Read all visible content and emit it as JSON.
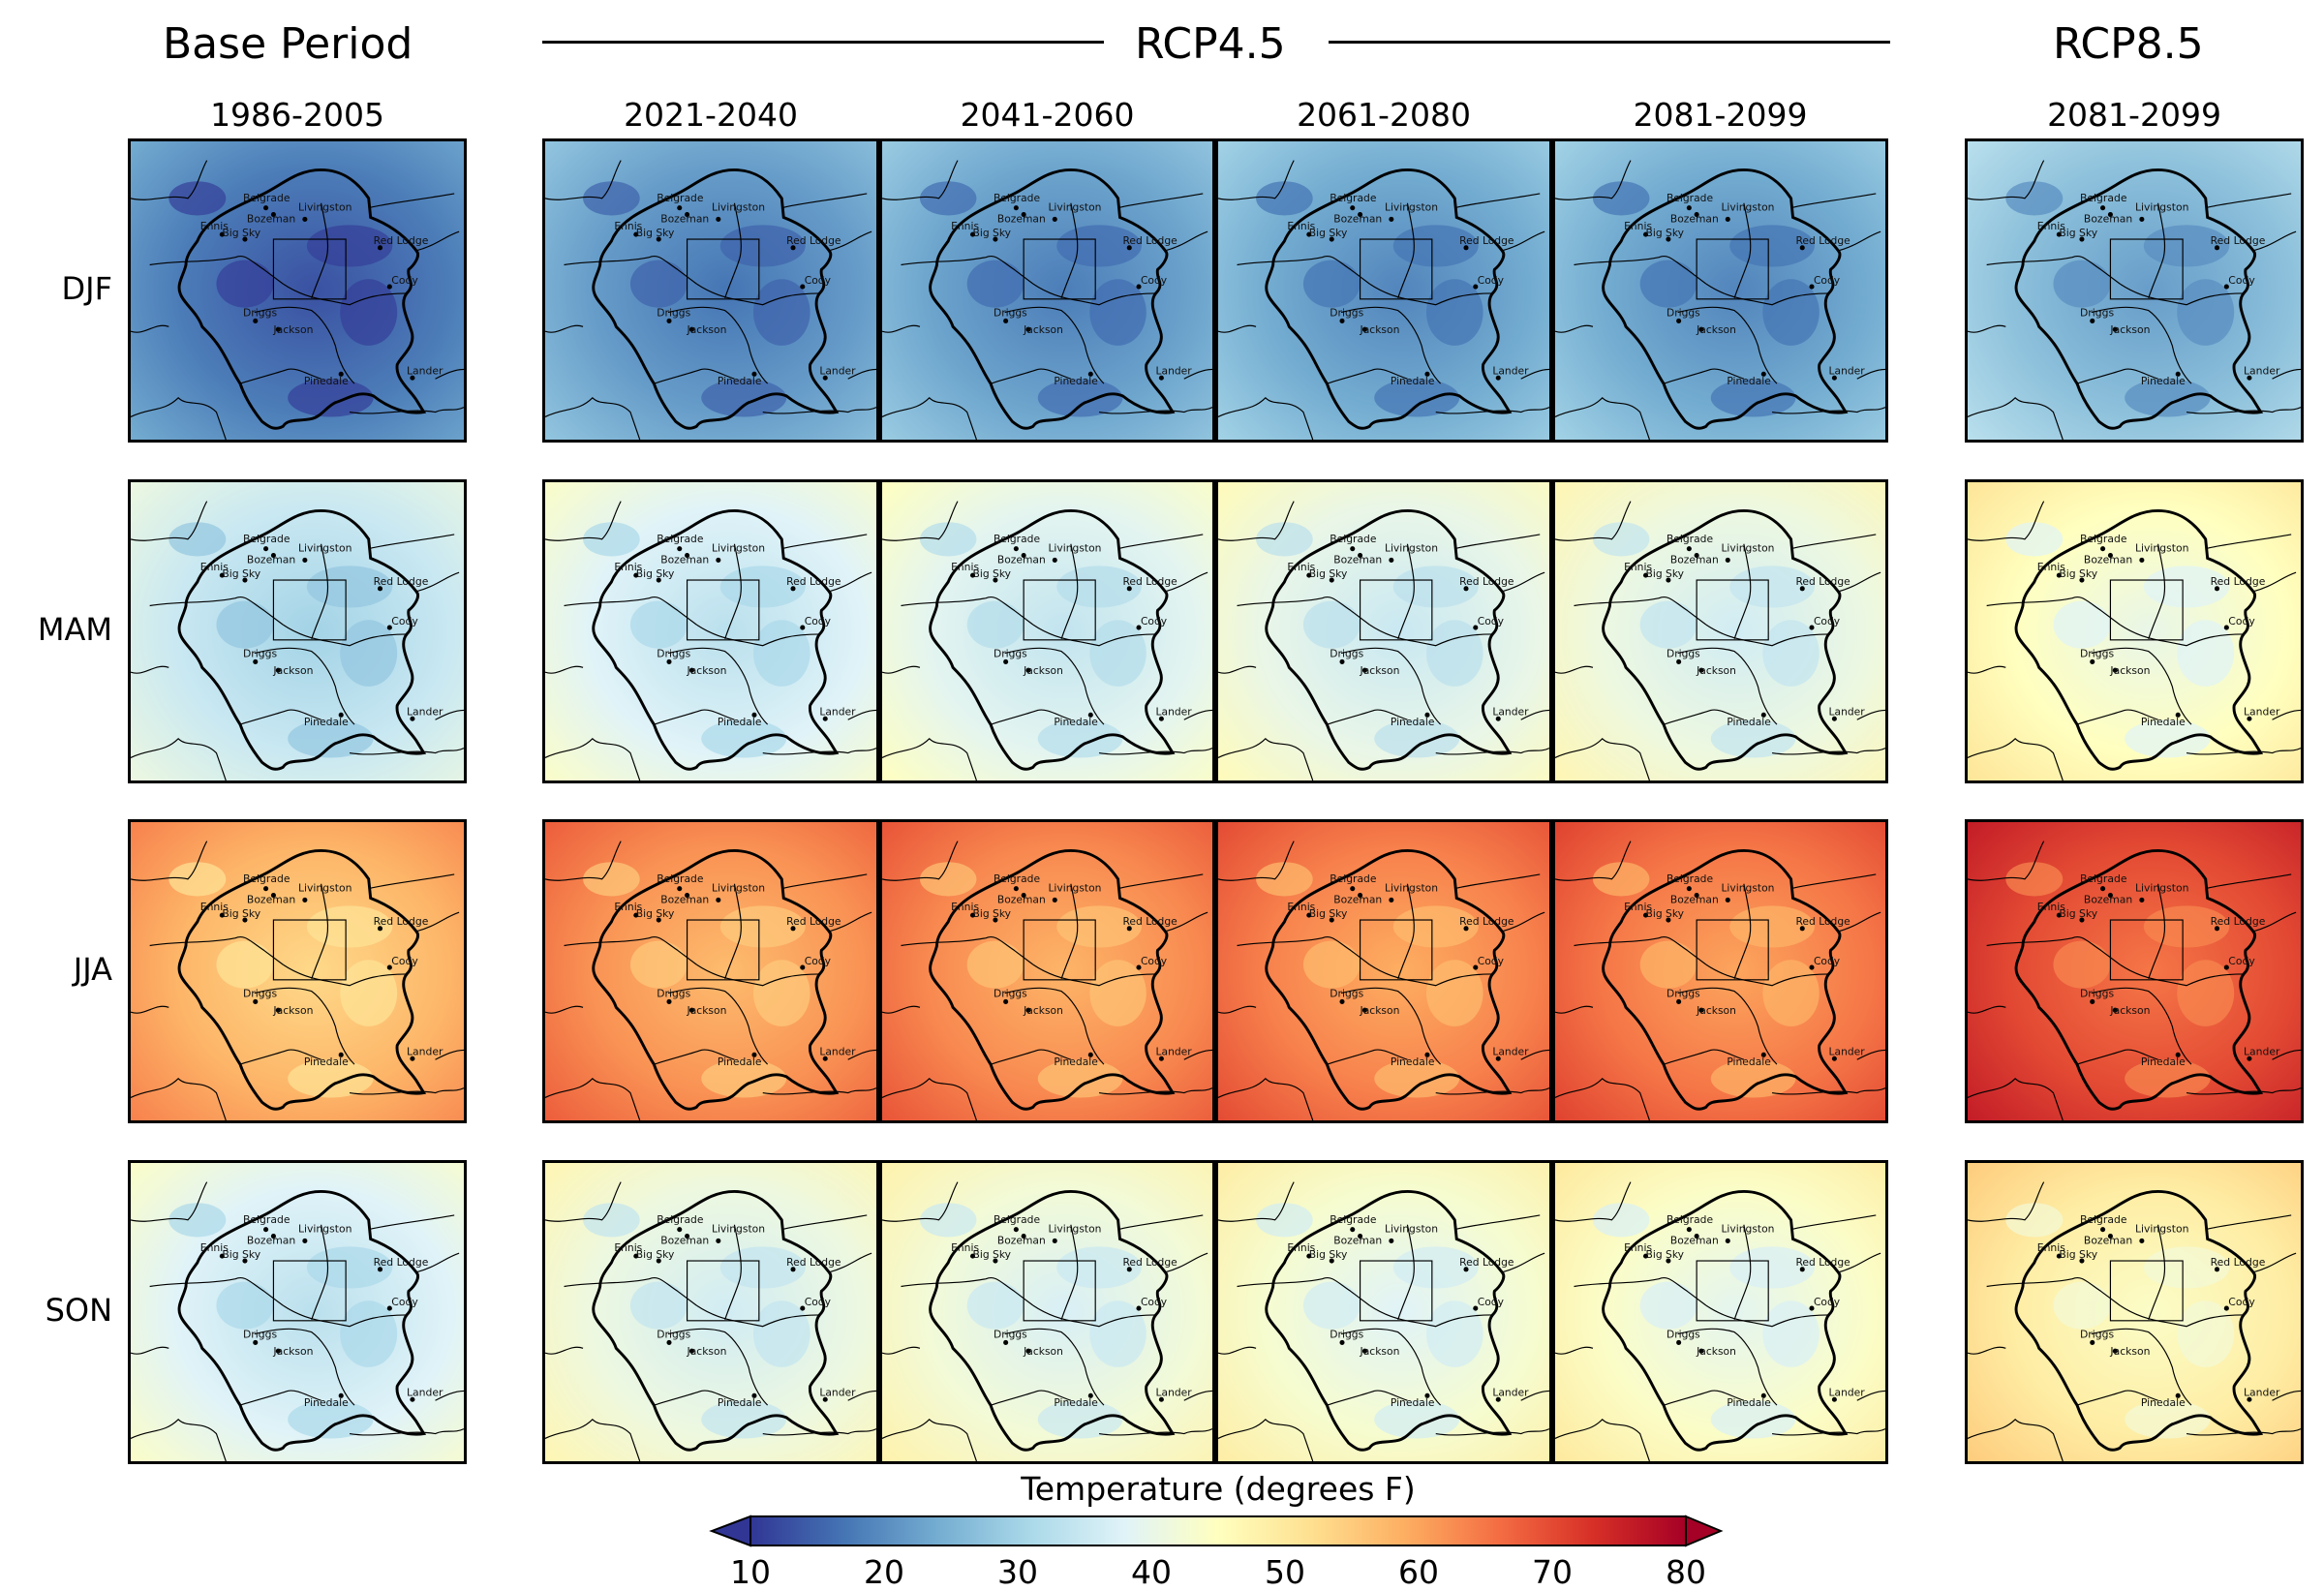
{
  "chart_data": {
    "type": "heatmap",
    "title": "",
    "group_titles": {
      "base": "Base Period",
      "rcp45": "RCP4.5",
      "rcp85": "RCP8.5"
    },
    "columns": [
      {
        "group": "base",
        "label": "1986-2005"
      },
      {
        "group": "rcp45",
        "label": "2021-2040"
      },
      {
        "group": "rcp45",
        "label": "2041-2060"
      },
      {
        "group": "rcp45",
        "label": "2061-2080"
      },
      {
        "group": "rcp45",
        "label": "2081-2099"
      },
      {
        "group": "rcp85",
        "label": "2081-2099"
      }
    ],
    "rows": [
      "DJF",
      "MAM",
      "JJA",
      "SON"
    ],
    "approx_mean_temperature_F": [
      [
        20,
        24,
        25,
        26,
        26,
        29
      ],
      [
        37,
        40,
        41,
        42,
        43,
        47
      ],
      [
        60,
        64,
        65,
        66,
        67,
        72
      ],
      [
        40,
        43,
        44,
        45,
        46,
        51
      ]
    ],
    "city_labels": [
      "Belgrade",
      "Bozeman",
      "Livingston",
      "Ennis",
      "Big Sky",
      "Red Lodge",
      "Cody",
      "Driggs",
      "Jackson",
      "Pinedale",
      "Lander"
    ],
    "colorbar": {
      "title": "Temperature (degrees F)",
      "colormap": "RdYlBu_r",
      "min": 10,
      "max": 80,
      "extend": "both",
      "ticks": [
        "10",
        "20",
        "30",
        "40",
        "50",
        "60",
        "70",
        "80"
      ]
    }
  },
  "colormap_stops": [
    "#313695",
    "#4575b4",
    "#74add1",
    "#abd9e9",
    "#e0f3f8",
    "#ffffbf",
    "#fee090",
    "#fdae61",
    "#f46d43",
    "#d73027",
    "#a50026"
  ]
}
